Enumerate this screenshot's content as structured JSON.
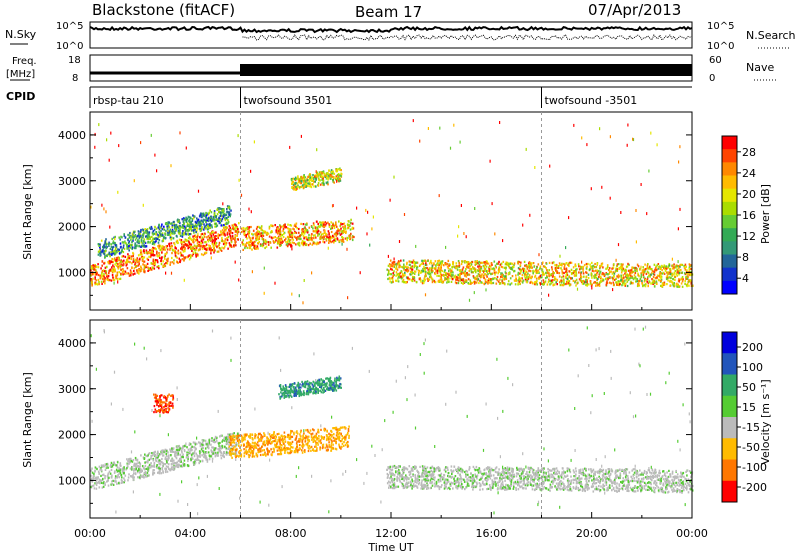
{
  "header": {
    "station": "Blackstone (fitACF)",
    "beam": "Beam 17",
    "date": "07/Apr/2013"
  },
  "top_panels": {
    "nsky_label": "N.Sky",
    "nsearch_label": "N.Search",
    "nsky_ticks": [
      "10^5",
      "10^0"
    ],
    "freq_label_line1": "Freq.",
    "freq_label_line2": "[MHz]",
    "freq_ticks": [
      "18",
      "8"
    ],
    "nave_label": "Nave",
    "nave_ticks": [
      "60",
      "0"
    ],
    "cpid_label": "CPID",
    "cpid_segments": [
      {
        "name": "rbsp-tau 210",
        "start_hour": 0
      },
      {
        "name": "twofsound 3501",
        "start_hour": 6
      },
      {
        "name": "twofsound -3501",
        "start_hour": 18
      }
    ]
  },
  "x_axis": {
    "label": "Time UT",
    "ticks": [
      "00:00",
      "04:00",
      "08:00",
      "12:00",
      "16:00",
      "20:00",
      "00:00"
    ]
  },
  "power_colorbar": {
    "label": "Power [dB]",
    "ticks": [
      "28",
      "24",
      "20",
      "16",
      "12",
      "8",
      "4"
    ],
    "colors": [
      "#ff0000",
      "#ff4400",
      "#ff8800",
      "#ffbb00",
      "#e5e600",
      "#aadd00",
      "#66cc33",
      "#33aa55",
      "#339977",
      "#226699",
      "#1133cc",
      "#0000ff"
    ]
  },
  "velocity_colorbar": {
    "label": "Velocity [m s⁻¹]",
    "ticks": [
      "200",
      "100",
      "50",
      "15",
      "-15",
      "-50",
      "-100",
      "-200"
    ],
    "colors": [
      "#0000dd",
      "#2255bb",
      "#33aa66",
      "#55cc33",
      "#bbbbbb",
      "#ffbb00",
      "#ff7700",
      "#ff0000"
    ]
  },
  "chart_data": [
    {
      "type": "heatmap",
      "ylabel": "Slant Range [km]",
      "xlabel": "Time UT",
      "ylim": [
        180,
        4500
      ],
      "xlim_hours": [
        0,
        24
      ],
      "y_ticks": [
        1000,
        2000,
        3000,
        4000
      ],
      "value_range_db": [
        0,
        30
      ],
      "bands": [
        {
          "t0": 0.0,
          "t1": 5.9,
          "r0_start": 700,
          "r0_end": 1600,
          "width": 500,
          "value": 24
        },
        {
          "t0": 0.3,
          "t1": 5.6,
          "r0_start": 1300,
          "r0_end": 2100,
          "width": 400,
          "value": 10
        },
        {
          "t0": 6.0,
          "t1": 10.5,
          "r0_start": 1500,
          "r0_end": 1700,
          "width": 500,
          "value": 22
        },
        {
          "t0": 8.0,
          "t1": 10.0,
          "r0_start": 2800,
          "r0_end": 3000,
          "width": 300,
          "value": 18
        },
        {
          "t0": 11.8,
          "t1": 24.0,
          "r0_start": 800,
          "r0_end": 700,
          "width": 500,
          "value": 20
        }
      ]
    },
    {
      "type": "heatmap",
      "ylabel": "Slant Range [km]",
      "xlabel": "Time UT",
      "ylim": [
        180,
        4500
      ],
      "xlim_hours": [
        0,
        24
      ],
      "y_ticks": [
        1000,
        2000,
        3000,
        4000
      ],
      "value_range_ms": [
        -200,
        200
      ],
      "bands": [
        {
          "t0": 0.0,
          "t1": 5.9,
          "r0_start": 800,
          "r0_end": 1600,
          "width": 500,
          "value": 0
        },
        {
          "t0": 5.5,
          "t1": 10.3,
          "r0_start": 1500,
          "r0_end": 1700,
          "width": 500,
          "value": -90
        },
        {
          "t0": 2.5,
          "t1": 3.3,
          "r0_start": 2500,
          "r0_end": 2500,
          "width": 400,
          "value": -150
        },
        {
          "t0": 7.5,
          "t1": 10.0,
          "r0_start": 2800,
          "r0_end": 3000,
          "width": 300,
          "value": 80
        },
        {
          "t0": 11.8,
          "t1": 24.0,
          "r0_start": 850,
          "r0_end": 750,
          "width": 500,
          "value": 0
        }
      ]
    }
  ]
}
